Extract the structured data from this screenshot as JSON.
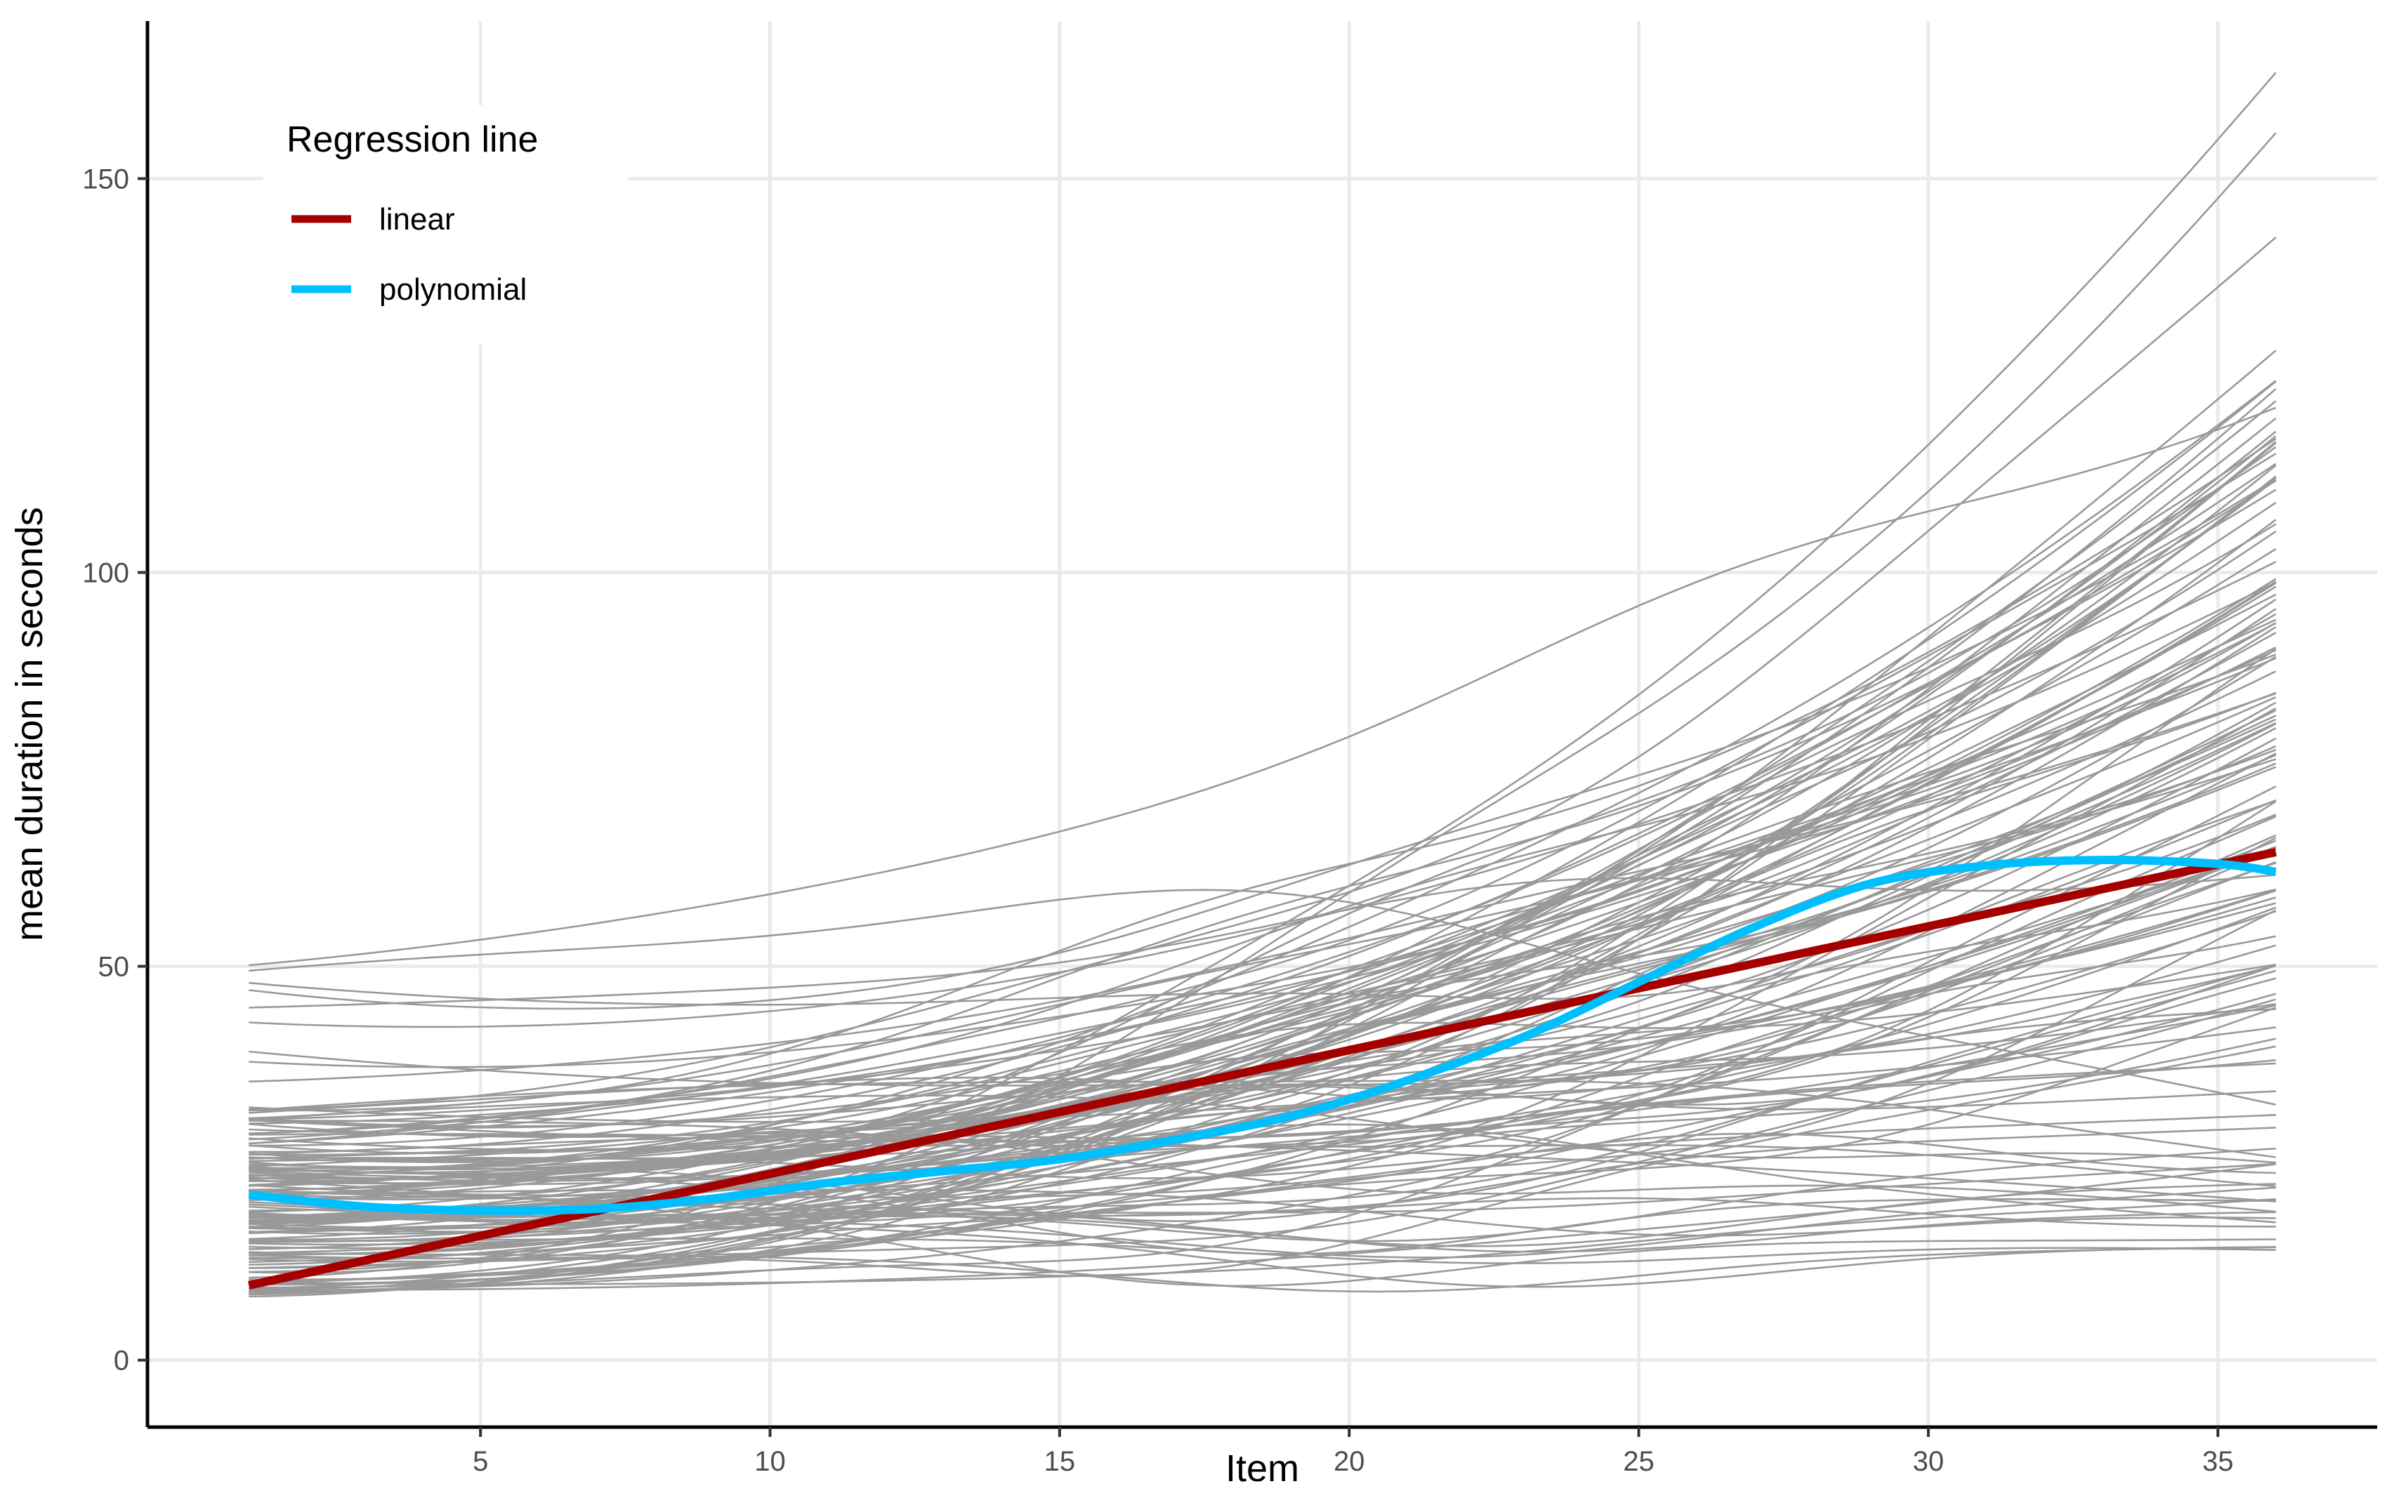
{
  "chart_data": {
    "type": "line",
    "title": "",
    "xlabel": "Item",
    "ylabel": "mean duration in seconds",
    "xlim": [
      -0.75,
      37.75
    ],
    "ylim": [
      -8.5,
      170
    ],
    "x_ticks": [
      5,
      10,
      15,
      20,
      25,
      30,
      35
    ],
    "y_ticks": [
      0,
      50,
      100,
      150
    ],
    "grid": true,
    "legend": {
      "title": "Regression line",
      "placement": "top-left",
      "entries": [
        {
          "label": "linear",
          "color": "#a50000"
        },
        {
          "label": "polynomial",
          "color": "#00bfff"
        }
      ]
    },
    "background_series": {
      "description_count": 140,
      "color": "#999999",
      "x_range": [
        1,
        36
      ],
      "seed": 7
    },
    "series": [
      {
        "name": "linear",
        "color": "#a50000",
        "x": [
          1,
          36
        ],
        "y": [
          9.5,
          64.5
        ]
      },
      {
        "name": "polynomial",
        "color": "#00bfff",
        "x": [
          1,
          3,
          5,
          7,
          9,
          11,
          13,
          15,
          17,
          19,
          21,
          23,
          25,
          27,
          29,
          31,
          33,
          35,
          36
        ],
        "y": [
          21,
          19.5,
          19,
          19.2,
          20.5,
          22.5,
          24,
          25.5,
          28,
          31,
          35.5,
          41,
          48,
          55,
          60.5,
          62.8,
          63.5,
          63,
          62
        ]
      }
    ]
  }
}
